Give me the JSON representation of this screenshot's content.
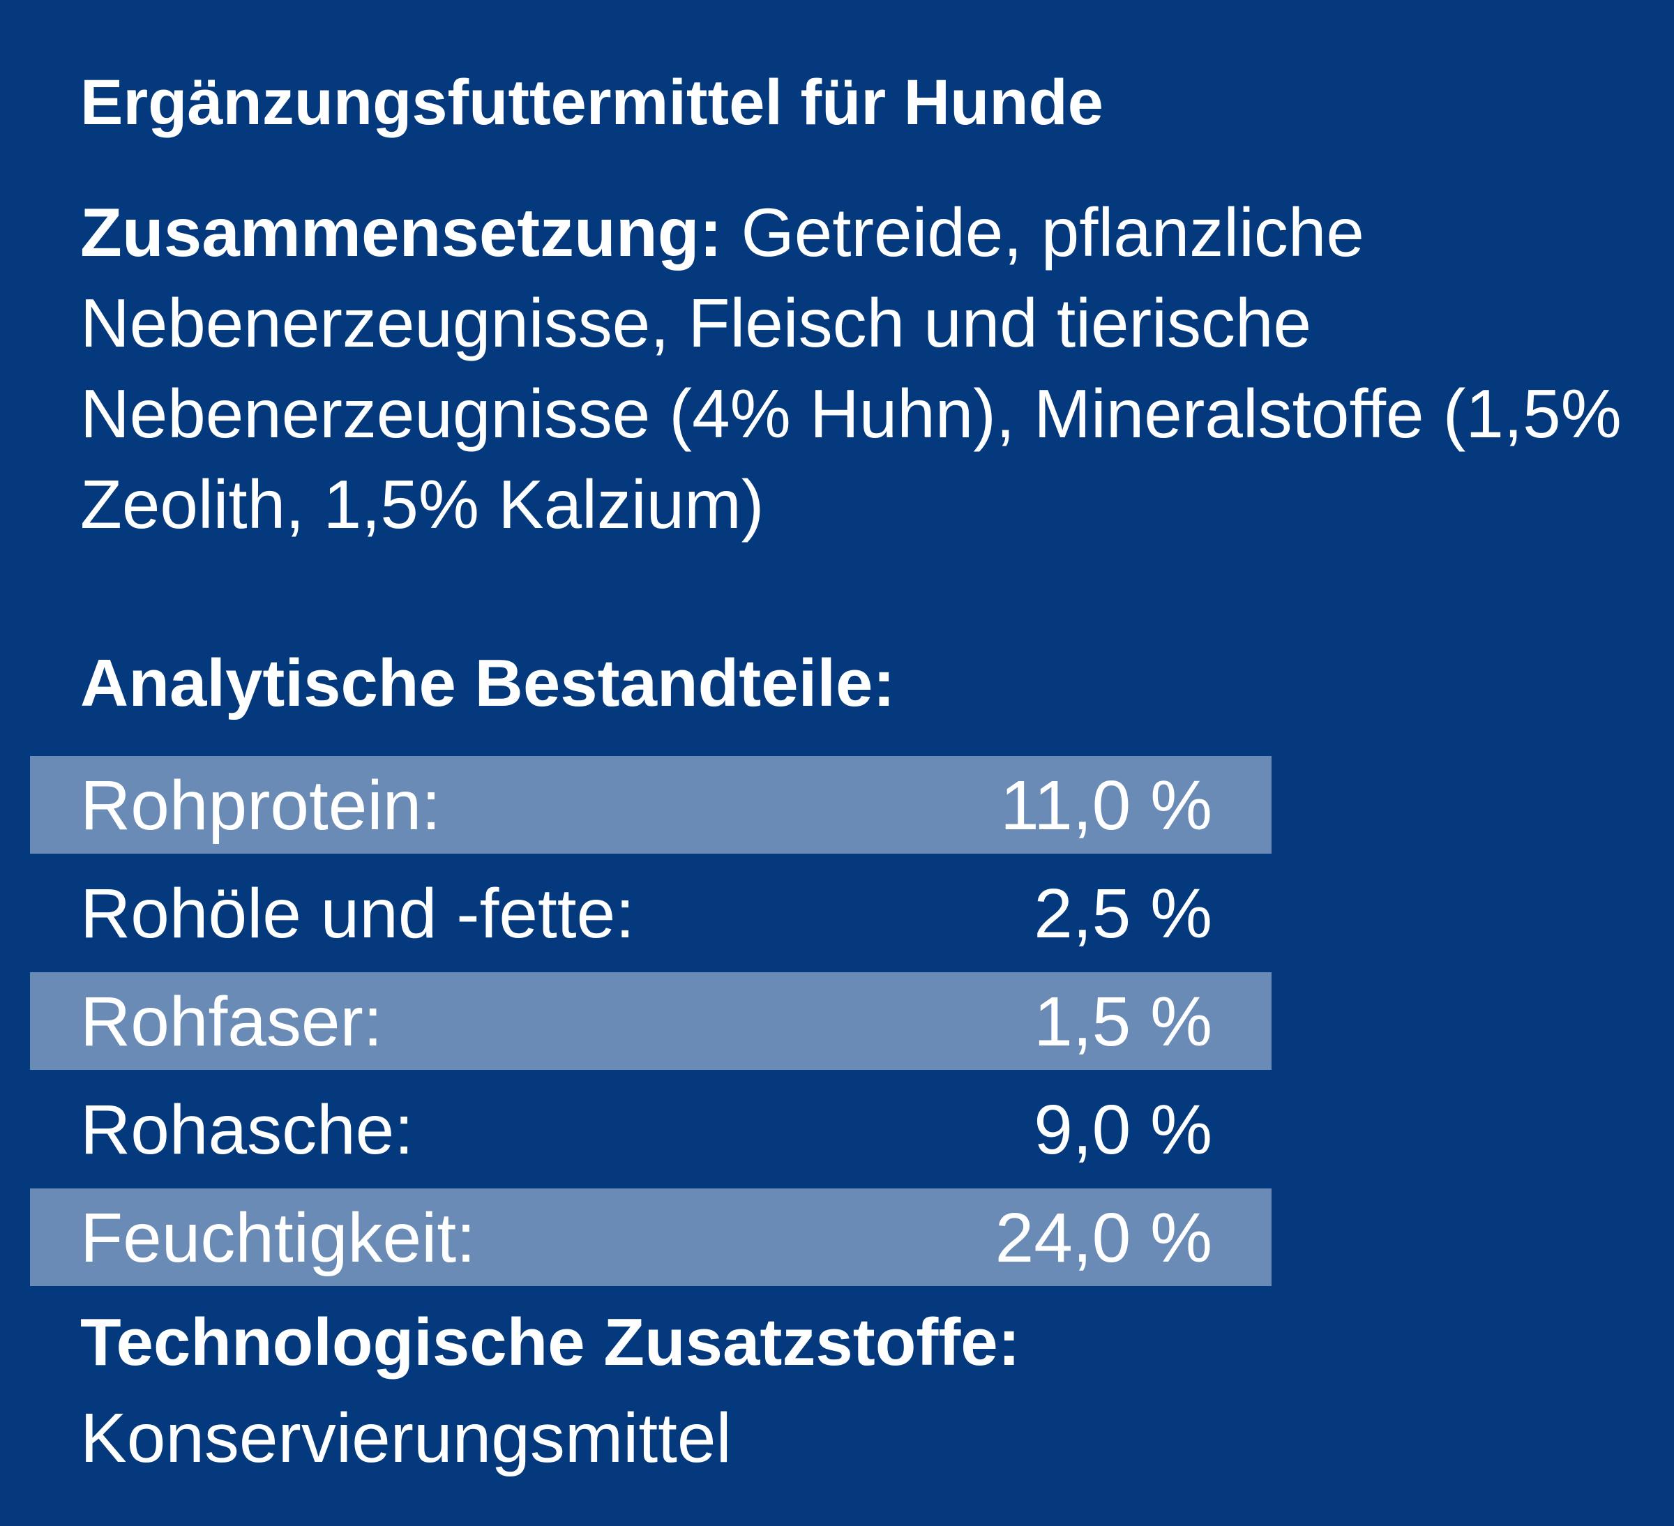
{
  "header": {
    "title": "Ergänzungsfuttermittel für Hunde"
  },
  "composition": {
    "label": "Zusammensetzung:",
    "text": "Getreide, pflanzliche Nebenerzeugnisse, Fleisch und tierische Nebenerzeugnisse (4% Huhn), Mineralstoffe (1,5% Zeolith, 1,5% Kalzium)"
  },
  "analysis": {
    "heading": "Analytische Bestandteile:",
    "rows": [
      [
        "Rohprotein:",
        "11,0 %"
      ],
      [
        "Rohöle und -fette:",
        "2,5 %"
      ],
      [
        "Rohfaser:",
        "1,5 %"
      ],
      [
        "Rohasche:",
        "9,0 %"
      ],
      [
        "Feuchtigkeit:",
        "24,0 %"
      ]
    ]
  },
  "additives": {
    "heading": "Technologische Zusatzstoffe:",
    "text": "Konservierungsmittel"
  }
}
